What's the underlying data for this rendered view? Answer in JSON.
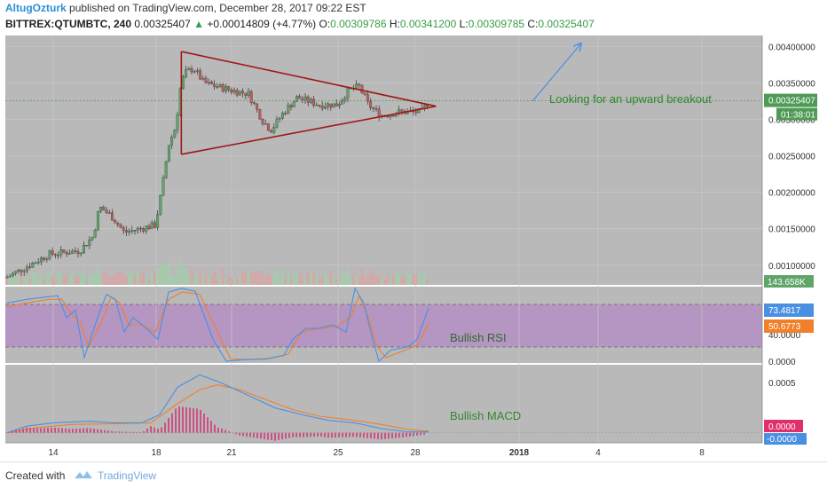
{
  "header": {
    "author": "AltugOzturk",
    "published_text": "published on TradingView.com, December 28, 2017 09:22 EST",
    "symbol": "BITTREX:QTUMBTC, 240",
    "last": "0.00325407",
    "change": "+0.00014809 (+4.77%)",
    "open_label": "O:",
    "open": "0.00309786",
    "high_label": "H:",
    "high": "0.00341200",
    "low_label": "L:",
    "low": "0.00309785",
    "close_label": "C:",
    "close": "0.00325407"
  },
  "footer": {
    "created_with": "Created with",
    "brand": "TradingView"
  },
  "colors": {
    "pane_bg": "#b9b9b9",
    "rsi_band": "#b48ec2",
    "up": "#5fa56a",
    "down": "#c05c5c",
    "triangle": "#a01818",
    "blue": "#4a90e2",
    "orange": "#f0802a",
    "annotation": "#2f8a2f",
    "price_badge": "#4e9a56",
    "macd_hist": "#d0407a"
  },
  "annotations": {
    "breakout": "Looking for an upward breakout",
    "rsi": "Bullish RSI",
    "macd": "Bullish MACD"
  },
  "chart_data": [
    {
      "type": "candlestick",
      "price_axis": {
        "ticks": [
          "0.00400000",
          "0.00350000",
          "0.00300000",
          "0.00250000",
          "0.00200000",
          "0.00150000",
          "0.00100000"
        ],
        "tick_values": [
          0.004,
          0.0035,
          0.003,
          0.0025,
          0.002,
          0.0015,
          0.001
        ],
        "ylim": [
          0.00073,
          0.00415
        ]
      },
      "time_axis": {
        "labels": [
          "14",
          "18",
          "21",
          "25",
          "28",
          "2018",
          "4",
          "8"
        ],
        "label_positions": [
          60,
          176,
          261,
          381,
          468,
          585,
          674,
          791
        ]
      },
      "current_price": "0.00325407",
      "countdown": "01:38:01",
      "volume_label": "143.658K",
      "candles_knots": [
        [
          10,
          0.00085
        ],
        [
          30,
          0.00098
        ],
        [
          55,
          0.00115
        ],
        [
          90,
          0.0012
        ],
        [
          105,
          0.0014
        ],
        [
          112,
          0.0018
        ],
        [
          125,
          0.00168
        ],
        [
          140,
          0.00145
        ],
        [
          175,
          0.00155
        ],
        [
          182,
          0.002
        ],
        [
          190,
          0.00265
        ],
        [
          198,
          0.0029
        ],
        [
          204,
          0.0035
        ],
        [
          210,
          0.00365
        ],
        [
          218,
          0.0037
        ],
        [
          230,
          0.0035
        ],
        [
          260,
          0.0034
        ],
        [
          280,
          0.00335
        ],
        [
          295,
          0.003
        ],
        [
          305,
          0.00285
        ],
        [
          320,
          0.0031
        ],
        [
          335,
          0.0033
        ],
        [
          360,
          0.0032
        ],
        [
          380,
          0.0032
        ],
        [
          393,
          0.0034
        ],
        [
          405,
          0.00345
        ],
        [
          415,
          0.0032
        ],
        [
          430,
          0.00305
        ],
        [
          450,
          0.0031
        ],
        [
          475,
          0.0031
        ],
        [
          483,
          0.00325
        ]
      ],
      "triangle": {
        "upper_line": [
          [
            19,
            0.00393
          ],
          [
            28.8,
            0.00318
          ]
        ],
        "lower_line": [
          [
            19,
            0.00252
          ],
          [
            28.8,
            0.00318
          ]
        ]
      }
    },
    {
      "type": "line",
      "name": "RSI",
      "ticks": [
        "0.0000",
        "40.0000"
      ],
      "levels": [
        20,
        80
      ],
      "values": [
        {
          "label": "73.4817",
          "color": "#4a90e2"
        },
        {
          "label": "50.6773",
          "color": "#f0802a"
        }
      ]
    },
    {
      "type": "bar",
      "name": "MACD",
      "ticks": [
        "0.0005",
        "0.0000"
      ],
      "values": [
        {
          "label": "0.0000",
          "color": "#e0306a"
        },
        {
          "label": "-0.0000",
          "color": "#4a90e2"
        }
      ],
      "peak_macd": 0.0007,
      "peak_signal": 0.00058
    }
  ]
}
